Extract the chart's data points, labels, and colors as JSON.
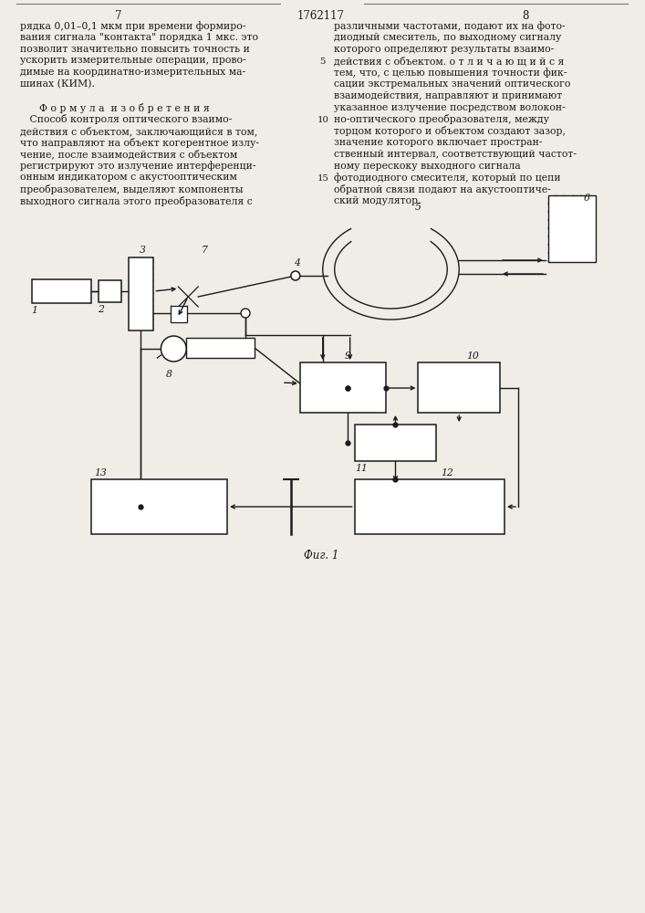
{
  "bg_color": "#f0ede6",
  "text_color": "#1a1a1a",
  "page_left": "7",
  "page_center": "1762117",
  "page_right": "8",
  "left_col": [
    "рядка 0,01–0,1 мкм при времени формиро-",
    "вания сигнала \"контакта\" порядка 1 мкс. это",
    "позволит значительно повысить точность и",
    "ускорить измерительные операции, прово-",
    "димые на координатно-измерительных ма-",
    "шинах (КИМ).",
    "",
    "      Ф о р м у л а  и з о б р е т е н и я",
    "   Способ контроля оптического взаимо-",
    "действия с объектом, заключающийся в том,",
    "что направляют на объект когерентное излу-",
    "чение, после взаимодействия с объектом",
    "регистрируют это излучение интерференци-",
    "онным индикатором с акустооптическим",
    "преобразователем, выделяют компоненты",
    "выходного сигнала этого преобразователя с"
  ],
  "right_col": [
    "различными частотами, подают их на фото-",
    "диодный смеситель, по выходному сигналу",
    "которого определяют результаты взаимо-",
    "действия с объектом. о т л и ч а ю щ и й с я",
    "тем, что, с целью повышения точности фик-",
    "сации экстремальных значений оптического",
    "взаимодействия, направляют и принимают",
    "указанное излучение посредством волокон-",
    "но-оптического преобразователя, между",
    "торцом которого и объектом создают зазор,",
    "значение которого включает простран-",
    "ственный интервал, соответствующий частот-",
    "ному перескоку выходного сигнала",
    "фотодиодного смесителя, который по цепи",
    "обратной связи подают на акустооптиче-",
    "ский модулятор."
  ],
  "caption": "Фиг. 1",
  "fs": 7.8,
  "fs_hdr": 8.5,
  "lh": 12.8
}
